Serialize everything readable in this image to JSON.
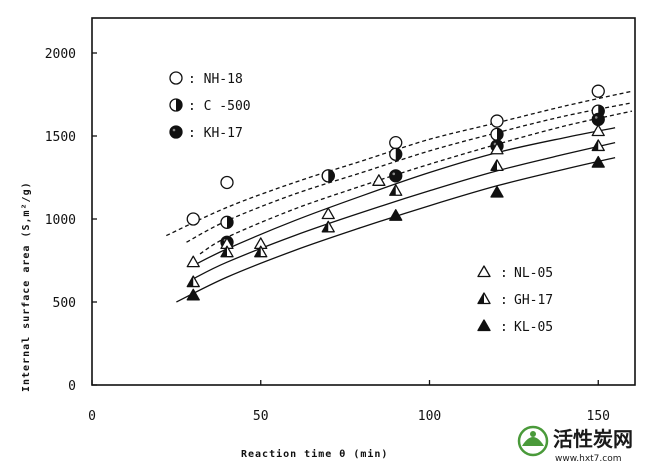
{
  "chart_data": {
    "type": "scatter",
    "xlabel": "Reaction time θ (min)",
    "ylabel": "Internal surface area (S,m²/g)",
    "xlim": [
      0,
      160
    ],
    "ylim": [
      0,
      2000
    ],
    "x_ticks": [
      "0",
      "50",
      "100",
      "150"
    ],
    "y_ticks": [
      "0",
      "500",
      "1000",
      "1500",
      "2000"
    ],
    "grid": false,
    "legend_upper": "top-left",
    "legend_lower": "bottom-right",
    "series": [
      {
        "name": "NH-18",
        "marker": "circle-open",
        "curve": "dashed",
        "group": "upper",
        "x": [
          30,
          40,
          70,
          90,
          120,
          150
        ],
        "y": [
          1000,
          1220,
          1260,
          1460,
          1590,
          1770
        ],
        "fit_x": [
          22,
          40,
          60,
          80,
          100,
          120,
          140,
          160
        ],
        "fit_y": [
          900,
          1070,
          1220,
          1350,
          1480,
          1580,
          1680,
          1770
        ]
      },
      {
        "name": "C -500",
        "marker": "circle-half",
        "curve": "dashed",
        "group": "upper",
        "x": [
          40,
          70,
          90,
          120,
          150
        ],
        "y": [
          980,
          1260,
          1390,
          1510,
          1650
        ],
        "fit_x": [
          28,
          40,
          60,
          80,
          100,
          120,
          140,
          160
        ],
        "fit_y": [
          860,
          990,
          1150,
          1280,
          1410,
          1520,
          1620,
          1700
        ]
      },
      {
        "name": "KH-17",
        "marker": "circle-filled",
        "curve": "dashed",
        "group": "upper",
        "x": [
          40,
          90,
          120,
          150
        ],
        "y": [
          860,
          1260,
          1440,
          1600
        ],
        "fit_x": [
          32,
          40,
          60,
          80,
          100,
          120,
          140,
          160
        ],
        "fit_y": [
          790,
          890,
          1060,
          1200,
          1330,
          1450,
          1560,
          1650
        ]
      },
      {
        "name": "NL-05",
        "marker": "triangle-open",
        "curve": "solid",
        "group": "lower",
        "x": [
          30,
          40,
          50,
          70,
          85,
          120,
          150
        ],
        "y": [
          740,
          850,
          850,
          1030,
          1230,
          1420,
          1530
        ],
        "fit_x": [
          30,
          40,
          60,
          80,
          100,
          120,
          140,
          155
        ],
        "fit_y": [
          720,
          820,
          990,
          1140,
          1280,
          1400,
          1490,
          1550
        ]
      },
      {
        "name": "GH-17",
        "marker": "triangle-half",
        "curve": "solid",
        "group": "lower",
        "x": [
          30,
          40,
          50,
          70,
          90,
          120,
          150
        ],
        "y": [
          620,
          800,
          800,
          950,
          1170,
          1320,
          1440
        ],
        "fit_x": [
          30,
          40,
          60,
          80,
          100,
          120,
          140,
          155
        ],
        "fit_y": [
          640,
          740,
          900,
          1040,
          1170,
          1290,
          1390,
          1460
        ]
      },
      {
        "name": "KL-05",
        "marker": "triangle-filled",
        "curve": "solid",
        "group": "lower",
        "x": [
          30,
          90,
          120,
          150
        ],
        "y": [
          540,
          1020,
          1160,
          1340
        ],
        "fit_x": [
          25,
          40,
          60,
          80,
          100,
          120,
          140,
          155
        ],
        "fit_y": [
          500,
          650,
          810,
          950,
          1080,
          1200,
          1300,
          1370
        ]
      }
    ]
  },
  "watermark": {
    "name": "活性炭网",
    "url": "www.hxt7.com",
    "logo_color": "#4a9a3a"
  }
}
